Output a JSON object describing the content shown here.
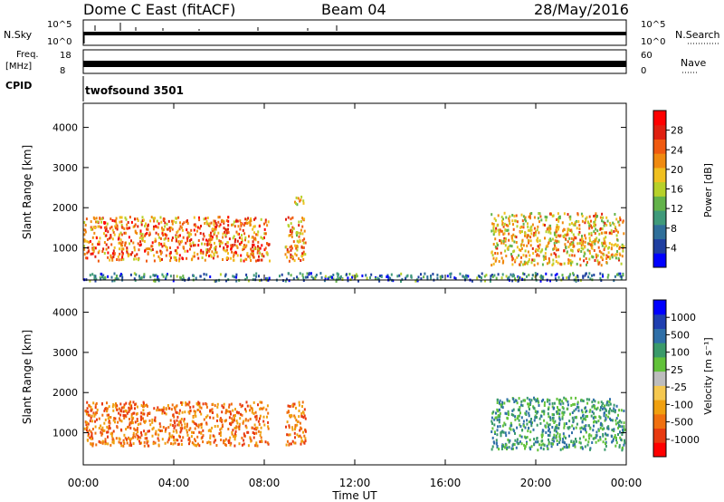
{
  "header": {
    "station": "Dome C East (fitACF)",
    "beam": "Beam 04",
    "date": "28/May/2016"
  },
  "strips": {
    "nsky_label": "N.Sky",
    "nsky_ticks": [
      "10^5",
      "10^0"
    ],
    "nsearch_label": "N.Search",
    "nsearch_ticks": [
      "10^5",
      "10^0"
    ],
    "freq_label": "Freq.",
    "freq_unit": "[MHz]",
    "freq_ticks": [
      "18",
      "8"
    ],
    "nave_label": "Nave",
    "nave_ticks": [
      "60",
      "0"
    ],
    "cpid_label": "CPID",
    "cpid_value": "twofsound 3501"
  },
  "colors": {
    "power_scale": [
      "#0000ff",
      "#1f3fa0",
      "#2f6f9a",
      "#3f9a7a",
      "#63b34a",
      "#b7d12a",
      "#f0c020",
      "#f08a10",
      "#f05a10",
      "#e02010",
      "#ff0000"
    ],
    "velocity_scale": [
      "#ff0000",
      "#e83a10",
      "#f07010",
      "#f0a010",
      "#f5c850",
      "#bdbdbd",
      "#62c23a",
      "#3a9a6a",
      "#2f6fa8",
      "#1f3fb0",
      "#0000ff"
    ],
    "echo_band": "#2a7a8a"
  },
  "chart_data": [
    {
      "type": "heatmap",
      "name": "power",
      "ylabel": "Slant Range [km]",
      "yticks": [
        "1000",
        "2000",
        "3000",
        "4000"
      ],
      "ylim": [
        200,
        4600
      ],
      "xlim": [
        0,
        24
      ],
      "colorbar_label": "Power [dB]",
      "colorbar_ticks": [
        "4",
        "8",
        "12",
        "16",
        "20",
        "24",
        "28"
      ],
      "colorbar_range": [
        0,
        32
      ],
      "echo_regions": [
        {
          "t_start": 0.0,
          "t_end": 8.2,
          "range_low": 700,
          "range_high": 1800,
          "level": 24
        },
        {
          "t_start": 8.9,
          "t_end": 9.8,
          "range_low": 700,
          "range_high": 1800,
          "level": 22
        },
        {
          "t_start": 9.3,
          "t_end": 9.9,
          "range_low": 2100,
          "range_high": 2300,
          "level": 20
        },
        {
          "t_start": 18.0,
          "t_end": 23.9,
          "range_low": 600,
          "range_high": 1900,
          "level": 20
        },
        {
          "t_start": 0.0,
          "t_end": 24.0,
          "range_low": 200,
          "range_high": 400,
          "level": 8
        }
      ]
    },
    {
      "type": "heatmap",
      "name": "velocity",
      "ylabel": "Slant Range [km]",
      "yticks": [
        "1000",
        "2000",
        "3000",
        "4000"
      ],
      "ylim": [
        200,
        4600
      ],
      "xlim": [
        0,
        24
      ],
      "xlabel": "Time UT",
      "xticks": [
        "00:00",
        "04:00",
        "08:00",
        "12:00",
        "16:00",
        "20:00",
        "00:00"
      ],
      "colorbar_label": "Velocity [m s⁻¹]",
      "colorbar_ticks": [
        "-1000",
        "-500",
        "-100",
        "-25",
        "25",
        "100",
        "500",
        "1000"
      ],
      "echo_regions": [
        {
          "t_start": 0.0,
          "t_end": 8.2,
          "range_low": 700,
          "range_high": 1800,
          "velocity": -150
        },
        {
          "t_start": 8.9,
          "t_end": 9.8,
          "range_low": 700,
          "range_high": 1800,
          "velocity": -200
        },
        {
          "t_start": 18.0,
          "t_end": 23.9,
          "range_low": 600,
          "range_high": 1900,
          "velocity": 50
        }
      ]
    }
  ]
}
